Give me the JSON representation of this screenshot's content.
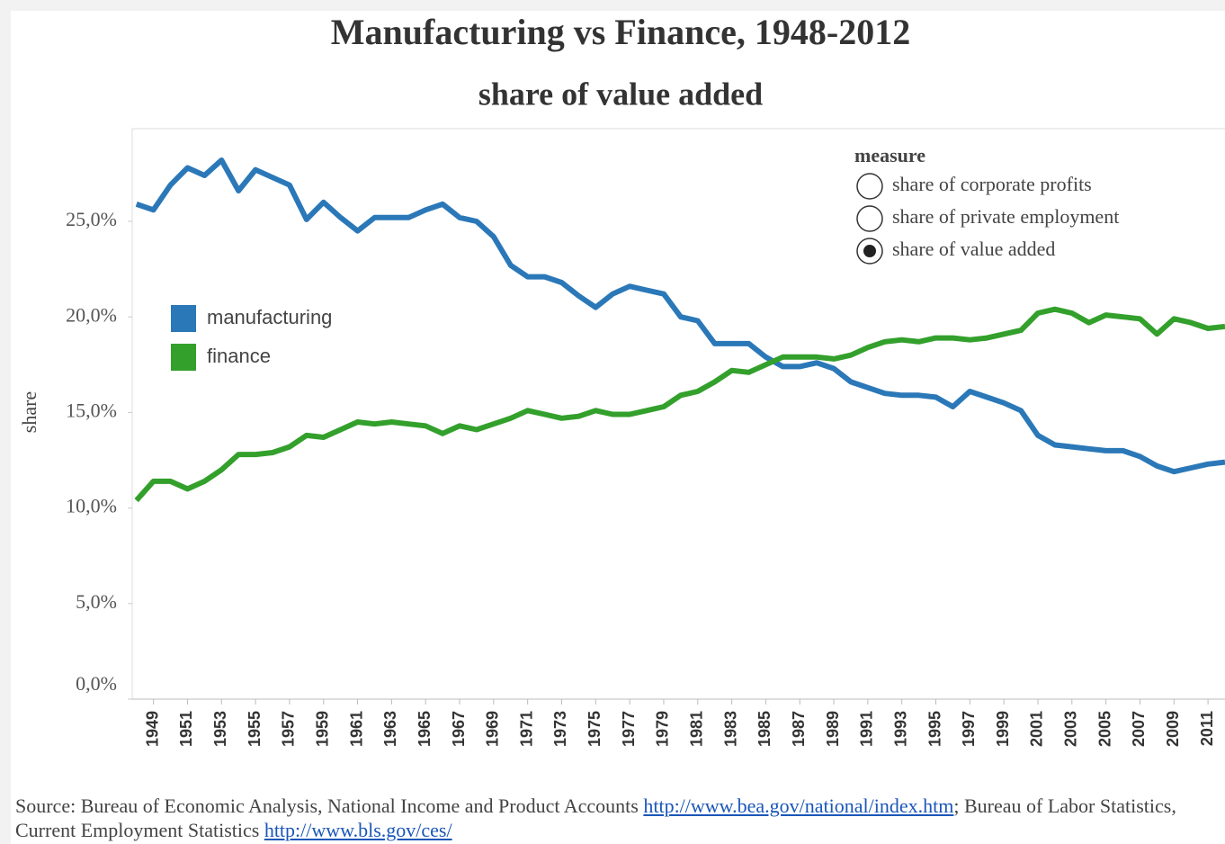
{
  "chart_data": {
    "type": "line",
    "title": "Manufacturing vs Finance, 1948-2012",
    "subtitle": "share of value added",
    "y_label": "share",
    "x": [
      1948,
      1949,
      1950,
      1951,
      1952,
      1953,
      1954,
      1955,
      1956,
      1957,
      1958,
      1959,
      1960,
      1961,
      1962,
      1963,
      1964,
      1965,
      1966,
      1967,
      1968,
      1969,
      1970,
      1971,
      1972,
      1973,
      1974,
      1975,
      1976,
      1977,
      1978,
      1979,
      1980,
      1981,
      1982,
      1983,
      1984,
      1985,
      1986,
      1987,
      1988,
      1989,
      1990,
      1991,
      1992,
      1993,
      1994,
      1995,
      1996,
      1997,
      1998,
      1999,
      2000,
      2001,
      2002,
      2003,
      2004,
      2005,
      2006,
      2007,
      2008,
      2009,
      2010,
      2011,
      2012
    ],
    "series": [
      {
        "name": "manufacturing",
        "color": "#2b78b8",
        "values": [
          25.9,
          25.6,
          26.9,
          27.8,
          27.4,
          28.2,
          26.6,
          27.7,
          27.3,
          26.9,
          25.1,
          26.0,
          25.2,
          24.5,
          25.2,
          25.2,
          25.2,
          25.6,
          25.9,
          25.2,
          25.0,
          24.2,
          22.7,
          22.1,
          22.1,
          21.8,
          21.1,
          20.5,
          21.2,
          21.6,
          21.4,
          21.2,
          20.0,
          19.8,
          18.6,
          18.6,
          18.6,
          17.9,
          17.4,
          17.4,
          17.6,
          17.3,
          16.6,
          16.3,
          16.0,
          15.9,
          15.9,
          15.8,
          15.3,
          16.1,
          15.8,
          15.5,
          15.1,
          13.8,
          13.3,
          13.2,
          13.1,
          13.0,
          13.0,
          12.7,
          12.2,
          11.9,
          12.1,
          12.3,
          12.4
        ]
      },
      {
        "name": "finance",
        "color": "#33a02c",
        "values": [
          10.4,
          11.4,
          11.4,
          11.0,
          11.4,
          12.0,
          12.8,
          12.8,
          12.9,
          13.2,
          13.8,
          13.7,
          14.1,
          14.5,
          14.4,
          14.5,
          14.4,
          14.3,
          13.9,
          14.3,
          14.1,
          14.4,
          14.7,
          15.1,
          14.9,
          14.7,
          14.8,
          15.1,
          14.9,
          14.9,
          15.1,
          15.3,
          15.9,
          16.1,
          16.6,
          17.2,
          17.1,
          17.5,
          17.9,
          17.9,
          17.9,
          17.8,
          18.0,
          18.4,
          18.7,
          18.8,
          18.7,
          18.9,
          18.9,
          18.8,
          18.9,
          19.1,
          19.3,
          20.2,
          20.4,
          20.2,
          19.7,
          20.1,
          20.0,
          19.9,
          19.1,
          19.9,
          19.7,
          19.4,
          19.5
        ]
      }
    ],
    "xlim": [
      1947.75,
      2012
    ],
    "xticks": [
      1949,
      1951,
      1953,
      1955,
      1957,
      1959,
      1961,
      1963,
      1965,
      1967,
      1969,
      1971,
      1973,
      1975,
      1977,
      1979,
      1981,
      1983,
      1985,
      1987,
      1989,
      1991,
      1993,
      1995,
      1997,
      1999,
      2001,
      2003,
      2005,
      2007,
      2009,
      2011
    ],
    "ylim": [
      0,
      29.85
    ],
    "yticks": [
      {
        "value": 0,
        "label": "0,0%"
      },
      {
        "value": 5,
        "label": "5,0%"
      },
      {
        "value": 10,
        "label": "10,0%"
      },
      {
        "value": 15,
        "label": "15,0%"
      },
      {
        "value": 20,
        "label": "20,0%"
      },
      {
        "value": 25,
        "label": "25,0%"
      }
    ],
    "grid": false,
    "legend": "left"
  },
  "measure_filter": {
    "title": "measure",
    "options": [
      "share of corporate profits",
      "share of private employment",
      "share of value added"
    ],
    "selected_index": 2
  },
  "footer": {
    "text1": "Source: Bureau of Economic Analysis, National Income and Product Accounts ",
    "link1": "http://www.bea.gov/national/index.htm",
    "text2": "; Bureau of Labor Statistics, Current Employment Statistics ",
    "link2": "http://www.bls.gov/ces/"
  }
}
